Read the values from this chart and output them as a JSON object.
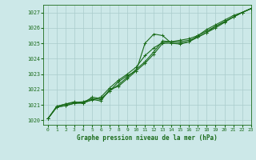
{
  "background_color": "#cce8e8",
  "grid_color": "#aacccc",
  "line_color": "#1a6b1a",
  "text_color": "#1a6b1a",
  "title": "Graphe pression niveau de la mer (hPa)",
  "xlim": [
    -0.5,
    23
  ],
  "ylim": [
    1019.7,
    1027.5
  ],
  "yticks": [
    1020,
    1021,
    1022,
    1023,
    1024,
    1025,
    1026,
    1027
  ],
  "xtick_labels": [
    "0",
    "1",
    "2",
    "3",
    "4",
    "5",
    "6",
    "7",
    "8",
    "9",
    "10",
    "11",
    "12",
    "13",
    "14",
    "15",
    "16",
    "17",
    "18",
    "19",
    "20",
    "21",
    "22",
    "23"
  ],
  "series": [
    [
      1020.1,
      1020.85,
      1020.95,
      1021.1,
      1021.1,
      1021.5,
      1021.4,
      1021.9,
      1022.5,
      1022.9,
      1023.2,
      1025.0,
      1025.6,
      1025.5,
      1025.0,
      1024.95,
      1025.1,
      1025.5,
      1025.9,
      1026.2,
      1026.5,
      1026.8,
      1027.0,
      1027.25
    ],
    [
      1020.1,
      1020.85,
      1020.95,
      1021.1,
      1021.15,
      1021.3,
      1021.5,
      1022.1,
      1022.6,
      1023.0,
      1023.45,
      1024.2,
      1024.7,
      1025.05,
      1025.1,
      1025.2,
      1025.3,
      1025.5,
      1025.8,
      1026.1,
      1026.4,
      1026.7,
      1027.0,
      1027.25
    ],
    [
      1020.1,
      1020.9,
      1021.05,
      1021.15,
      1021.2,
      1021.4,
      1021.35,
      1021.9,
      1022.3,
      1022.8,
      1023.3,
      1023.8,
      1024.45,
      1025.15,
      1025.1,
      1025.1,
      1025.2,
      1025.4,
      1025.7,
      1026.0,
      1026.35,
      1026.7,
      1027.0,
      1027.25
    ],
    [
      1020.1,
      1020.9,
      1021.05,
      1021.2,
      1021.1,
      1021.35,
      1021.25,
      1022.0,
      1022.2,
      1022.7,
      1023.2,
      1023.7,
      1024.3,
      1025.0,
      1025.0,
      1025.0,
      1025.1,
      1025.4,
      1025.7,
      1026.1,
      1026.4,
      1026.7,
      1027.0,
      1027.25
    ]
  ],
  "marker": "+",
  "markersize": 3.5,
  "linewidth": 0.8
}
